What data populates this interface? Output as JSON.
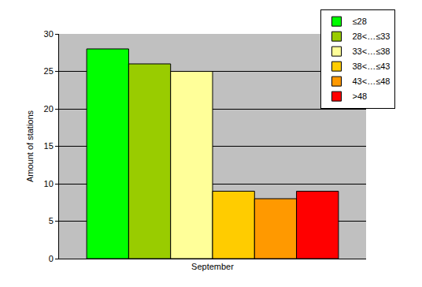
{
  "chart_data": {
    "type": "bar",
    "y_label": "Amount of stations",
    "categories": [
      "September"
    ],
    "series": [
      {
        "name": "≤28",
        "color": "#00ff00",
        "values": [
          28
        ]
      },
      {
        "name": "28<…≤33",
        "color": "#99cc00",
        "values": [
          26
        ]
      },
      {
        "name": "33<…≤38",
        "color": "#ffff99",
        "values": [
          25
        ]
      },
      {
        "name": "38<…≤43",
        "color": "#ffcc00",
        "values": [
          9
        ]
      },
      {
        "name": "43<…≤48",
        "color": "#ff9900",
        "values": [
          8
        ]
      },
      {
        "name": ">48",
        "color": "#ff0000",
        "values": [
          9
        ]
      }
    ],
    "ylim": [
      0,
      30
    ],
    "yticks": [
      0,
      5,
      10,
      15,
      20,
      25,
      30
    ],
    "grid": true,
    "legend": "top right"
  }
}
